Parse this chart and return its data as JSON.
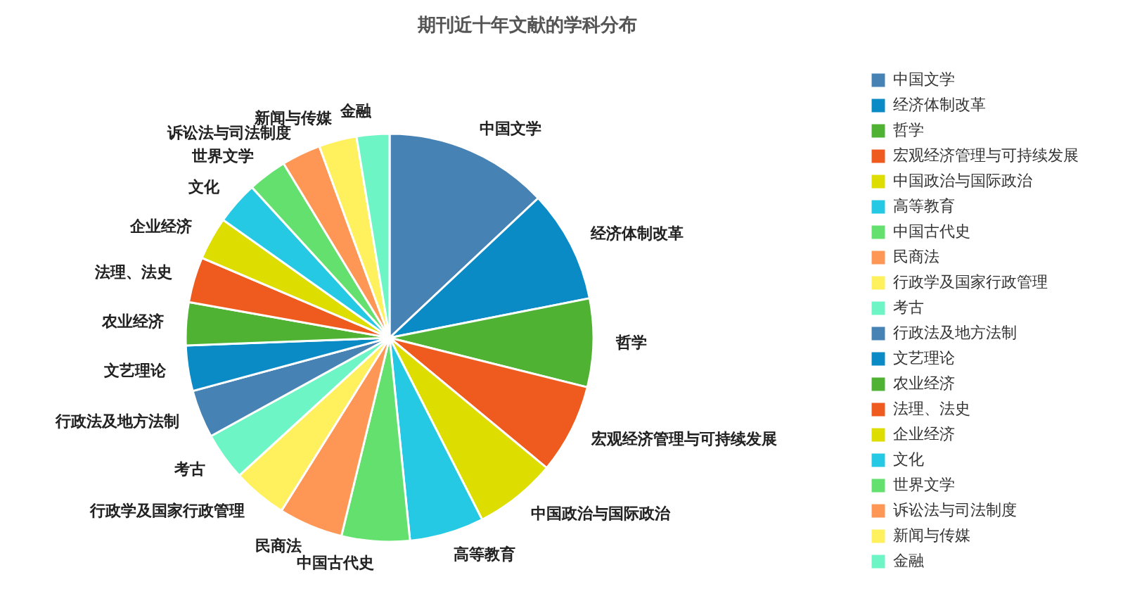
{
  "chart_data": {
    "type": "pie",
    "title": "期刊近十年文献的学科分布",
    "categories": [
      "中国文学",
      "经济体制改革",
      "哲学",
      "宏观经济管理与可持续发展",
      "中国政治与国际政治",
      "高等教育",
      "中国古代史",
      "民商法",
      "行政学及国家行政管理",
      "考古",
      "行政法及地方法制",
      "文艺理论",
      "农业经济",
      "法理、法史",
      "企业经济",
      "文化",
      "世界文学",
      "诉讼法与司法制度",
      "新闻与传媒",
      "金融"
    ],
    "values": [
      13.0,
      8.9,
      7.0,
      7.1,
      6.5,
      5.9,
      5.4,
      5.1,
      4.3,
      3.8,
      3.8,
      3.6,
      3.4,
      3.6,
      3.4,
      3.4,
      3.1,
      3.1,
      3.0,
      2.6
    ],
    "colors": [
      "#4682b4",
      "#0a8bc6",
      "#4fb233",
      "#ef5a1e",
      "#dddd00",
      "#26c9e4",
      "#63e06d",
      "#fe9655",
      "#fff05e",
      "#6df5c6",
      "#4682b4",
      "#0a8bc6",
      "#4fb233",
      "#ef5a1e",
      "#dddd00",
      "#26c9e4",
      "#63e06d",
      "#fe9655",
      "#fff05e",
      "#6df5c6"
    ],
    "legend": "right"
  }
}
